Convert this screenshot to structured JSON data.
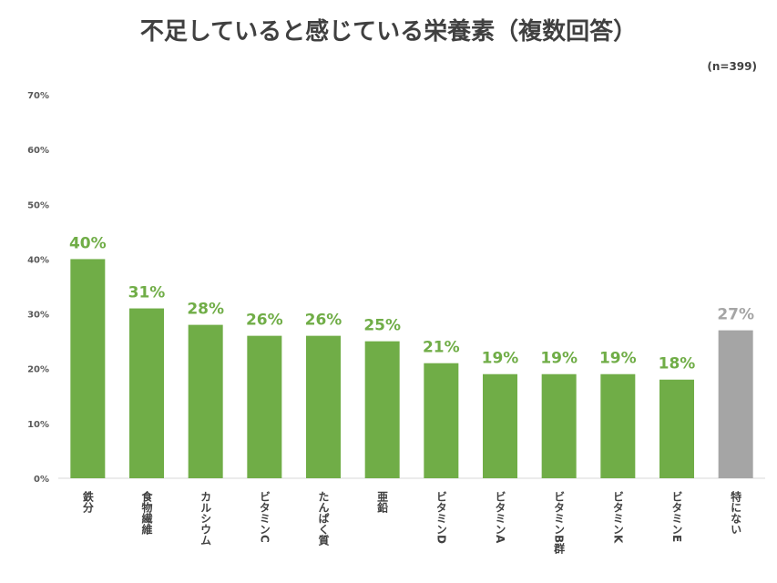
{
  "title": "不足していると感じている栄養素（複数回答）",
  "note": "(n=399)",
  "colors": {
    "main": "#70ad47",
    "other": "#a5a5a5",
    "axis": "#d9d9d9"
  },
  "chart_data": {
    "type": "bar",
    "title": "不足していると感じている栄養素（複数回答）",
    "categories": [
      "鉄分",
      "食物繊維",
      "カルシウム",
      "ビタミンC",
      "たんぱく質",
      "亜鉛",
      "ビタミンD",
      "ビタミンA",
      "ビタミンB群",
      "ビタミンK",
      "ビタミンE",
      "特にない"
    ],
    "values": [
      40,
      31,
      28,
      26,
      26,
      25,
      21,
      19,
      19,
      19,
      18,
      27
    ],
    "data_labels": [
      "40%",
      "31%",
      "28%",
      "26%",
      "26%",
      "25%",
      "21%",
      "19%",
      "19%",
      "19%",
      "18%",
      "27%"
    ],
    "ylim": [
      0,
      70
    ],
    "yticks": [
      0,
      10,
      20,
      30,
      40,
      50,
      60,
      70
    ],
    "ytick_labels": [
      "0%",
      "10%",
      "20%",
      "30%",
      "40%",
      "50%",
      "60%",
      "70%"
    ],
    "highlight_category": "特にない",
    "grid": false,
    "legend": "none"
  }
}
